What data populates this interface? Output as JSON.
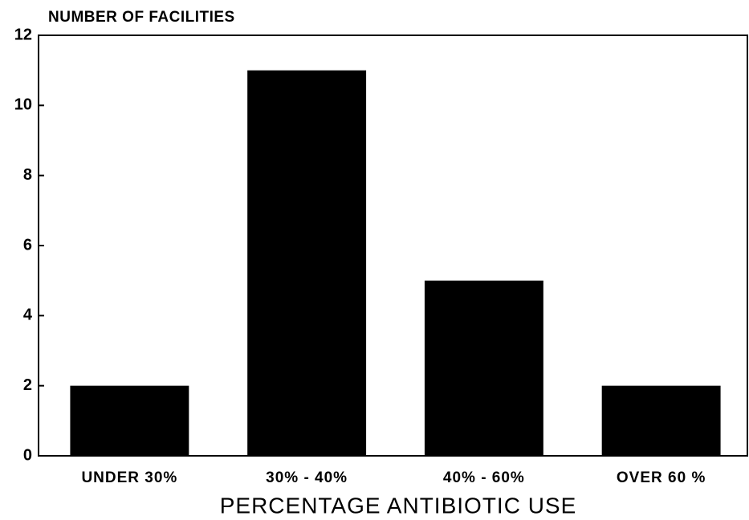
{
  "chart_data": {
    "type": "bar",
    "y_label": "NUMBER OF FACILITIES",
    "x_label": "PERCENTAGE ANTIBIOTIC USE",
    "categories": [
      "UNDER 30%",
      "30% - 40%",
      "40% - 60%",
      "OVER 60 %"
    ],
    "values": [
      2,
      11,
      5,
      2
    ],
    "color": "#000000",
    "ylim": [
      0,
      12
    ],
    "yticks": [
      0,
      2,
      4,
      6,
      8,
      10,
      12
    ],
    "grid": false
  }
}
